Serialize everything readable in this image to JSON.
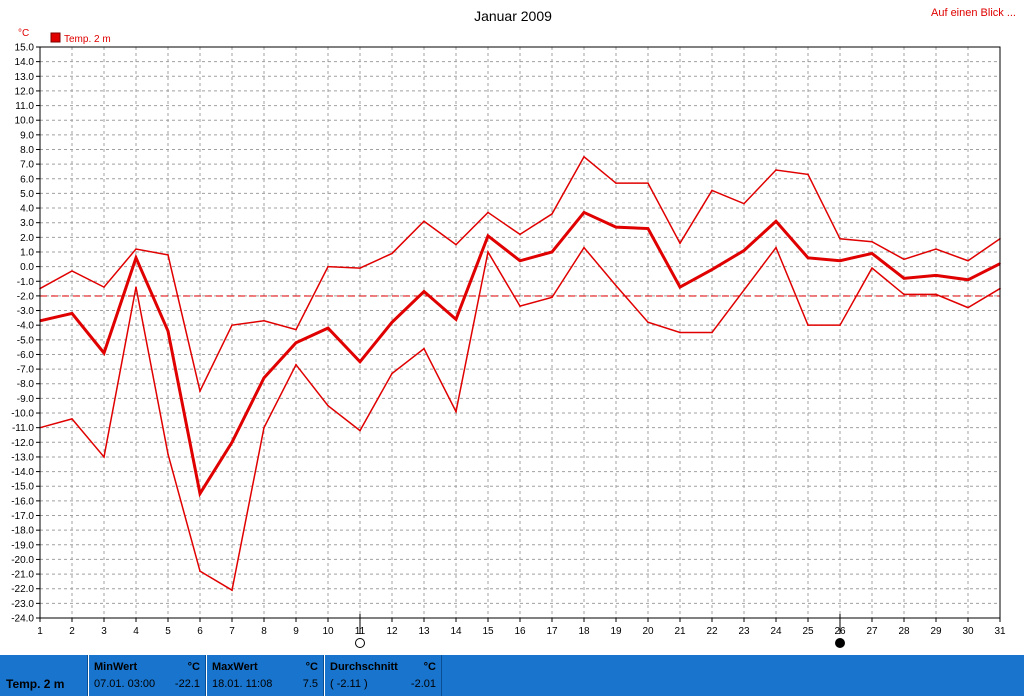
{
  "header": {
    "title": "Januar 2009",
    "link_label": "Auf einen Blick ...",
    "unit_label": "°C",
    "legend_label": "Temp. 2 m"
  },
  "colors": {
    "series": "#e00000",
    "grid": "#a0a0a0",
    "footer_bg": "#1874cd"
  },
  "chart_data": {
    "type": "line",
    "title": "Januar 2009",
    "ylabel": "°C",
    "ylim": [
      -24,
      15
    ],
    "ytick_step": 1,
    "x": [
      1,
      2,
      3,
      4,
      5,
      6,
      7,
      8,
      9,
      10,
      11,
      12,
      13,
      14,
      15,
      16,
      17,
      18,
      19,
      20,
      21,
      22,
      23,
      24,
      25,
      26,
      27,
      28,
      29,
      30,
      31
    ],
    "grid": true,
    "legend": "top-left",
    "average_line": -2.01,
    "series": [
      {
        "name": "Temp. 2 m",
        "role": "max",
        "values": [
          -1.5,
          -0.3,
          -1.4,
          1.2,
          0.8,
          -8.5,
          -4.0,
          -3.7,
          -4.3,
          0.0,
          -0.1,
          0.9,
          3.1,
          1.5,
          3.7,
          2.2,
          3.6,
          7.5,
          5.7,
          5.7,
          1.6,
          5.2,
          4.3,
          6.6,
          6.3,
          1.9,
          1.7,
          0.5,
          1.2,
          0.4,
          1.9
        ]
      },
      {
        "name": "Temp. 2 m",
        "role": "mean",
        "values": [
          -3.7,
          -3.2,
          -5.9,
          0.6,
          -4.4,
          -15.5,
          -12.0,
          -7.6,
          -5.2,
          -4.2,
          -6.5,
          -3.8,
          -1.7,
          -3.6,
          2.1,
          0.4,
          1.0,
          3.7,
          2.7,
          2.6,
          -1.4,
          -0.2,
          1.1,
          3.1,
          0.6,
          0.4,
          0.9,
          -0.8,
          -0.6,
          -0.9,
          0.2
        ]
      },
      {
        "name": "Temp. 2 m",
        "role": "min",
        "values": [
          -11.0,
          -10.4,
          -13.0,
          -1.4,
          -12.8,
          -20.8,
          -22.1,
          -11.0,
          -6.7,
          -9.5,
          -11.2,
          -7.3,
          -5.6,
          -9.9,
          1.0,
          -2.7,
          -2.1,
          1.3,
          -1.3,
          -3.8,
          -4.5,
          -4.5,
          -1.6,
          1.3,
          -4.0,
          -4.0,
          -0.1,
          -1.9,
          -1.9,
          -2.8,
          -1.5
        ]
      }
    ],
    "moon_markers": [
      {
        "day": 11,
        "phase": "full-moon"
      },
      {
        "day": 26,
        "phase": "new-moon"
      }
    ]
  },
  "footer": {
    "series_label": "Temp. 2 m",
    "min": {
      "header": "MinWert",
      "unit": "°C",
      "sub": "07.01.  03:00",
      "value": "-22.1"
    },
    "max": {
      "header": "MaxWert",
      "unit": "°C",
      "sub": "18.01.  11:08",
      "value": "7.5"
    },
    "avg": {
      "header": "Durchschnitt",
      "unit": "°C",
      "sub": "( -2.11 )",
      "value": "-2.01"
    }
  }
}
